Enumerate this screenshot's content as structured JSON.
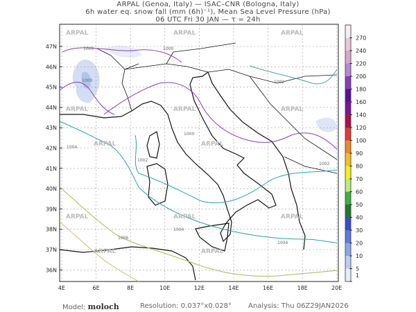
{
  "header": {
    "line1": "ARPAL (Genoa, Italy)  —  ISAC–CNR (Bologna, Italy)",
    "line2": "6h water eq. snow fall (mm (6h)⁻¹), Mean Sea Level Pressure (hPa)",
    "line3": "06 UTC Fri 30 JAN  —  τ = 24h"
  },
  "map": {
    "lat_labels": [
      "47N",
      "46N",
      "45N",
      "44N",
      "43N",
      "42N",
      "41N",
      "40N",
      "39N",
      "38N",
      "37N",
      "36N"
    ],
    "lon_labels": [
      "4E",
      "6E",
      "8E",
      "10E",
      "12E",
      "14E",
      "16E",
      "18E",
      "20E"
    ],
    "watermark": "ARPAL",
    "isobar_labels": [
      "1000",
      "1000",
      "1000",
      "1000",
      "1002",
      "1002",
      "1004",
      "1004",
      "1004",
      "1006",
      "1002"
    ]
  },
  "colorbar": {
    "labels": [
      "270",
      "240",
      "220",
      "200",
      "180",
      "160",
      "140",
      "120",
      "100",
      "90",
      "80",
      "70",
      "60",
      "50",
      "40",
      "30",
      "20",
      "10",
      "5",
      "1"
    ],
    "colors": [
      "#f6eef2",
      "#e8c8d8",
      "#d8a8cc",
      "#b58ad0",
      "#8a3cc0",
      "#5a0ea0",
      "#7a1890",
      "#b0104a",
      "#e03a3a",
      "#ec8a2a",
      "#f2c020",
      "#f4f020",
      "#b8ec80",
      "#40b040",
      "#1e7a2e",
      "#3c4cc8",
      "#6478d8",
      "#8ea6e6",
      "#bccef2",
      "#e6eefa"
    ]
  },
  "footer": {
    "model_label": "Model:",
    "model_value": "moloch",
    "resolution": "Resolution: 0.037°x0.028°",
    "analysis": "Analysis: Thu  06Z29JAN2026"
  }
}
